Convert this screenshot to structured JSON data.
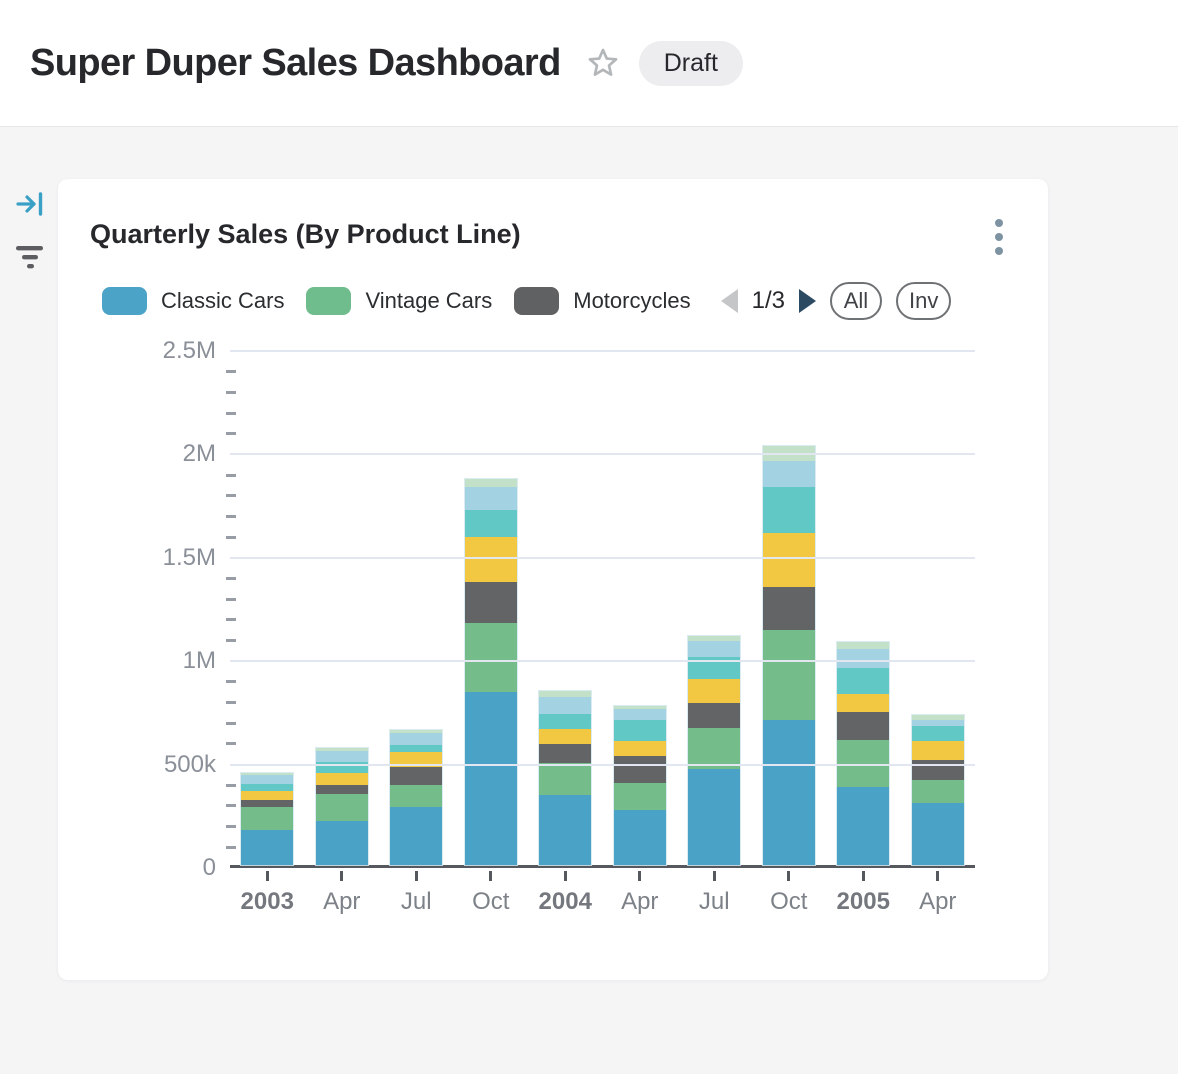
{
  "header": {
    "title": "Super Duper Sales Dashboard",
    "badge": "Draft"
  },
  "card": {
    "title": "Quarterly Sales (By Product Line)",
    "legend": [
      {
        "label": "Classic Cars",
        "color": "#4ba3c7"
      },
      {
        "label": "Vintage Cars",
        "color": "#6fbd8c"
      },
      {
        "label": "Motorcycles",
        "color": "#606163"
      }
    ],
    "pagination": {
      "label": "1/3"
    },
    "buttons": {
      "all": "All",
      "invert": "Inv"
    }
  },
  "colors": {
    "accent_blue": "#3aa0c6",
    "pager_next": "#2d4a63",
    "pager_prev_disabled": "#c4c6c8",
    "gridline": "#e2e6f0",
    "axis_line": "#55585c",
    "axis_text": "#8a8f98"
  },
  "chart_data": {
    "type": "bar",
    "stacked": true,
    "title": "Quarterly Sales (By Product Line)",
    "legend_position": "top",
    "grid": "horizontal-major-with-minor-ticks",
    "categories": [
      "2003",
      "Apr",
      "Jul",
      "Oct",
      "2004",
      "Apr",
      "Jul",
      "Oct",
      "2005",
      "Apr"
    ],
    "bold_categories": [
      true,
      false,
      false,
      false,
      true,
      false,
      false,
      false,
      true,
      false
    ],
    "series": [
      {
        "name": "Classic Cars",
        "color": "#4aa2c6",
        "values": [
          168000,
          211000,
          280000,
          836000,
          337000,
          264000,
          465000,
          699000,
          377000,
          300000
        ]
      },
      {
        "name": "Vintage Cars",
        "color": "#74bd8b",
        "values": [
          114000,
          134000,
          106000,
          335000,
          158000,
          132000,
          197000,
          438000,
          229000,
          110000
        ]
      },
      {
        "name": "Motorcycles",
        "color": "#636466",
        "values": [
          34000,
          44000,
          87000,
          200000,
          88000,
          132000,
          122000,
          209000,
          134000,
          100000
        ]
      },
      {
        "name": "unlabeled-series-yellow",
        "color": "#f2c843",
        "values": [
          44000,
          58000,
          74000,
          214000,
          77000,
          74000,
          118000,
          258000,
          89000,
          89000
        ]
      },
      {
        "name": "unlabeled-series-teal",
        "color": "#62c8c6",
        "values": [
          34000,
          52000,
          35000,
          132000,
          71000,
          97000,
          106000,
          226000,
          122000,
          73000
        ]
      },
      {
        "name": "unlabeled-series-lightblue",
        "color": "#a3d2e2",
        "values": [
          40000,
          53000,
          57000,
          113000,
          84000,
          55000,
          74000,
          126000,
          93000,
          29000
        ]
      },
      {
        "name": "unlabeled-series-palegreen",
        "color": "#c3e1c9",
        "values": [
          13000,
          15000,
          15000,
          39000,
          26000,
          15000,
          28000,
          68000,
          35000,
          23000
        ]
      }
    ],
    "y_axis": {
      "ticks": [
        "0",
        "500k",
        "1M",
        "1.5M",
        "2M",
        "2.5M"
      ],
      "max": 2500000,
      "major_step": 500000,
      "minor_step": 100000,
      "ylim": [
        0,
        2500000
      ]
    },
    "xlabel": "",
    "ylabel": ""
  }
}
